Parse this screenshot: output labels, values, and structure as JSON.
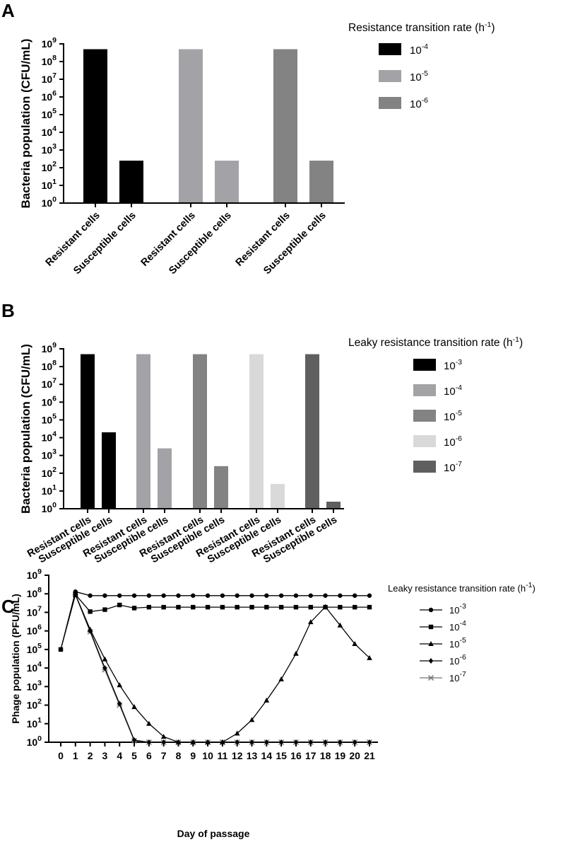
{
  "chart_data": [
    {
      "panel": "A",
      "type": "bar",
      "ylabel": "Bacteria population (CFU/mL)",
      "yscale": "log",
      "ylim": [
        1,
        1000000000
      ],
      "yticks": [
        {
          "b": "10",
          "e": "0"
        },
        {
          "b": "10",
          "e": "1"
        },
        {
          "b": "10",
          "e": "2"
        },
        {
          "b": "10",
          "e": "3"
        },
        {
          "b": "10",
          "e": "4"
        },
        {
          "b": "10",
          "e": "5"
        },
        {
          "b": "10",
          "e": "6"
        },
        {
          "b": "10",
          "e": "7"
        },
        {
          "b": "10",
          "e": "8"
        },
        {
          "b": "10",
          "e": "9"
        }
      ],
      "legend_title": "Resistance transition rate (h",
      "legend_title_sup": "-1",
      "legend_title_end": ")",
      "legend_position": "right",
      "groups": [
        {
          "name_base": "10",
          "name_exp": "-4",
          "color": "#000000",
          "categories": [
            "Resistant cells",
            "Susceptible cells"
          ],
          "values": [
            500000000,
            250
          ]
        },
        {
          "name_base": "10",
          "name_exp": "-5",
          "color": "#a3a3a7",
          "categories": [
            "Resistant cells",
            "Susceptible cells"
          ],
          "values": [
            500000000,
            250
          ]
        },
        {
          "name_base": "10",
          "name_exp": "-6",
          "color": "#838383",
          "categories": [
            "Resistant cells",
            "Susceptible cells"
          ],
          "values": [
            500000000,
            250
          ]
        }
      ]
    },
    {
      "panel": "B",
      "type": "bar",
      "ylabel": "Bacteria population (CFU/mL)",
      "yscale": "log",
      "ylim": [
        1,
        1000000000
      ],
      "yticks": [
        {
          "b": "10",
          "e": "0"
        },
        {
          "b": "10",
          "e": "1"
        },
        {
          "b": "10",
          "e": "2"
        },
        {
          "b": "10",
          "e": "3"
        },
        {
          "b": "10",
          "e": "4"
        },
        {
          "b": "10",
          "e": "5"
        },
        {
          "b": "10",
          "e": "6"
        },
        {
          "b": "10",
          "e": "7"
        },
        {
          "b": "10",
          "e": "8"
        },
        {
          "b": "10",
          "e": "9"
        }
      ],
      "legend_title": "Leaky resistance transition rate (h",
      "legend_title_sup": "-1",
      "legend_title_end": ")",
      "legend_position": "right",
      "groups": [
        {
          "name_base": "10",
          "name_exp": "-3",
          "color": "#000000",
          "categories": [
            "Resistant cells",
            "Susceptible cells"
          ],
          "values": [
            500000000,
            20000
          ]
        },
        {
          "name_base": "10",
          "name_exp": "-4",
          "color": "#a3a3a7",
          "categories": [
            "Resistant cells",
            "Susceptible cells"
          ],
          "values": [
            500000000,
            2500
          ]
        },
        {
          "name_base": "10",
          "name_exp": "-5",
          "color": "#838383",
          "categories": [
            "Resistant cells",
            "Susceptible cells"
          ],
          "values": [
            500000000,
            250
          ]
        },
        {
          "name_base": "10",
          "name_exp": "-6",
          "color": "#d9d9d9",
          "categories": [
            "Resistant cells",
            "Susceptible cells"
          ],
          "values": [
            500000000,
            25
          ]
        },
        {
          "name_base": "10",
          "name_exp": "-7",
          "color": "#5f5f5f",
          "categories": [
            "Resistant cells",
            "Susceptible cells"
          ],
          "values": [
            500000000,
            2.5
          ]
        }
      ]
    },
    {
      "panel": "C",
      "type": "line",
      "ylabel": "Phage population (PFU/mL)",
      "xlabel": "Day of passage",
      "yscale": "log",
      "ylim": [
        1,
        1000000000
      ],
      "yticks": [
        {
          "b": "10",
          "e": "0"
        },
        {
          "b": "10",
          "e": "1"
        },
        {
          "b": "10",
          "e": "2"
        },
        {
          "b": "10",
          "e": "3"
        },
        {
          "b": "10",
          "e": "4"
        },
        {
          "b": "10",
          "e": "5"
        },
        {
          "b": "10",
          "e": "6"
        },
        {
          "b": "10",
          "e": "7"
        },
        {
          "b": "10",
          "e": "8"
        },
        {
          "b": "10",
          "e": "9"
        }
      ],
      "x": [
        0,
        1,
        2,
        3,
        4,
        5,
        6,
        7,
        8,
        9,
        10,
        11,
        12,
        13,
        14,
        15,
        16,
        17,
        18,
        19,
        20,
        21
      ],
      "xticks": [
        "0",
        "1",
        "2",
        "3",
        "4",
        "5",
        "6",
        "7",
        "8",
        "9",
        "10",
        "11",
        "12",
        "13",
        "14",
        "15",
        "16",
        "17",
        "18",
        "19",
        "20",
        "21"
      ],
      "legend_title": "Leaky resistance transition rate (h",
      "legend_title_sup": "-1",
      "legend_title_end": ")",
      "legend_position": "right",
      "series": [
        {
          "name_base": "10",
          "name_exp": "-3",
          "marker": "circle",
          "x": [
            0,
            1,
            2,
            3,
            4,
            5,
            6,
            7,
            8,
            9,
            10,
            11,
            12,
            13,
            14,
            15,
            16,
            17,
            18,
            19,
            20,
            21
          ],
          "values": [
            100000,
            130000000,
            80000000,
            80000000,
            80000000,
            80000000,
            80000000,
            80000000,
            80000000,
            80000000,
            80000000,
            80000000,
            80000000,
            80000000,
            80000000,
            80000000,
            80000000,
            80000000,
            80000000,
            80000000,
            80000000,
            80000000
          ]
        },
        {
          "name_base": "10",
          "name_exp": "-4",
          "marker": "square",
          "x": [
            0,
            1,
            2,
            3,
            4,
            5,
            6,
            7,
            8,
            9,
            10,
            11,
            12,
            13,
            14,
            15,
            16,
            17,
            18,
            19,
            20,
            21
          ],
          "values": [
            100000,
            90000000,
            11000000,
            14000000,
            25000000,
            17000000,
            19000000,
            19000000,
            19000000,
            19000000,
            19000000,
            19000000,
            19000000,
            19000000,
            19000000,
            19000000,
            19000000,
            19000000,
            19000000,
            19000000,
            19000000,
            19000000
          ]
        },
        {
          "name_base": "10",
          "name_exp": "-5",
          "marker": "triangle",
          "x": [
            1,
            2,
            3,
            4,
            5,
            6,
            7,
            8,
            9,
            10,
            11,
            12,
            13,
            14,
            15,
            16,
            17,
            18,
            19,
            20,
            21
          ],
          "values": [
            90000000,
            1200000,
            30000,
            1200,
            80,
            10,
            2,
            1,
            1,
            1,
            1,
            3,
            16,
            180,
            2500,
            60000,
            3000000,
            20000000,
            2000000,
            200000,
            35000
          ]
        },
        {
          "name_base": "10",
          "name_exp": "-6",
          "marker": "diamond",
          "x": [
            1,
            2,
            3,
            4,
            5,
            6,
            7,
            8,
            9,
            10,
            11,
            12,
            13,
            14,
            15,
            16,
            17,
            18,
            19,
            20,
            21
          ],
          "values": [
            90000000,
            1000000,
            10000,
            120,
            1.3,
            1,
            1,
            1,
            1,
            1,
            1,
            1,
            1,
            1,
            1,
            1,
            1,
            1,
            1,
            1,
            1
          ]
        },
        {
          "name_base": "10",
          "name_exp": "-7",
          "marker": "star",
          "x": [
            1,
            2,
            3,
            4,
            5,
            6,
            7,
            8,
            9,
            10,
            11,
            12,
            13,
            14,
            15,
            16,
            17,
            18,
            19,
            20,
            21
          ],
          "values": [
            90000000,
            900000,
            8000,
            100,
            1.2,
            1,
            1,
            1,
            1,
            1,
            1,
            1,
            1,
            1,
            1,
            1,
            1,
            1,
            1,
            1,
            1
          ]
        }
      ]
    }
  ]
}
